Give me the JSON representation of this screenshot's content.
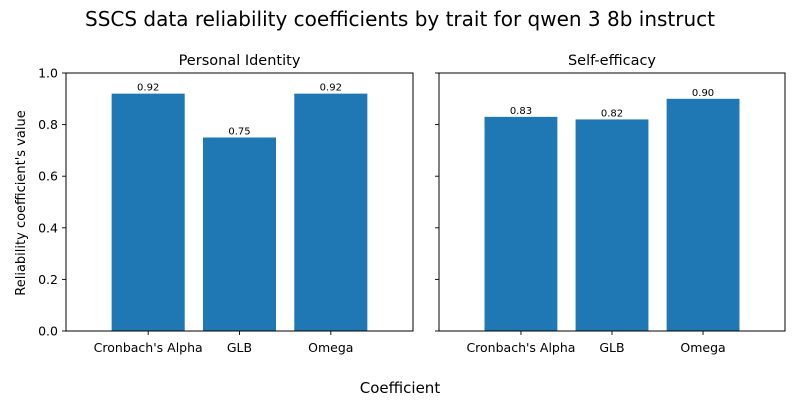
{
  "figure": {
    "title": "SSCS data reliability coefficients by trait for qwen 3 8b instruct",
    "xlabel": "Coefficient",
    "ylabel": "Reliability coefficient's value"
  },
  "colors": {
    "bar": "#1f77b4"
  },
  "chart_data": [
    {
      "type": "bar",
      "title": "Personal Identity",
      "categories": [
        "Cronbach's Alpha",
        "GLB",
        "Omega"
      ],
      "values": [
        0.92,
        0.75,
        0.92
      ],
      "value_labels": [
        "0.92",
        "0.75",
        "0.92"
      ],
      "ylim": [
        0,
        1
      ],
      "yticks": [
        0.0,
        0.2,
        0.4,
        0.6,
        0.8,
        1.0
      ],
      "ytick_labels": [
        "0.0",
        "0.2",
        "0.4",
        "0.6",
        "0.8",
        "1.0"
      ],
      "grid": false
    },
    {
      "type": "bar",
      "title": "Self-efficacy",
      "categories": [
        "Cronbach's Alpha",
        "GLB",
        "Omega"
      ],
      "values": [
        0.83,
        0.82,
        0.9
      ],
      "value_labels": [
        "0.83",
        "0.82",
        "0.90"
      ],
      "ylim": [
        0,
        1
      ],
      "yticks": [
        0.0,
        0.2,
        0.4,
        0.6,
        0.8,
        1.0
      ],
      "grid": false
    }
  ]
}
